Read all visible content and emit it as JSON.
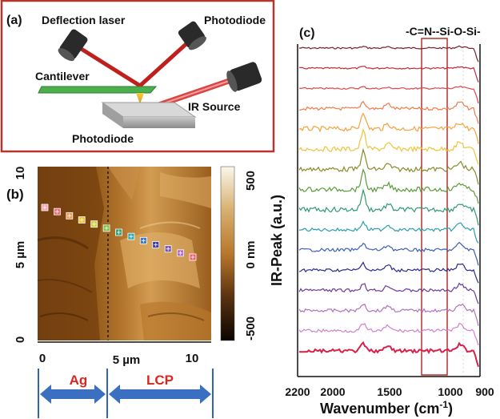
{
  "panel_a": {
    "label": "(a)",
    "deflection_laser": "Deflection laser",
    "photodiode_top": "Photodiode",
    "cantilever": "Cantilever",
    "ir_source": "IR Source",
    "photodiode_bottom": "Photodiode"
  },
  "panel_b": {
    "label": "(b)",
    "y_ticks": [
      "10",
      "5 µm",
      "0"
    ],
    "x_ticks": [
      "0",
      "5 µm",
      "10"
    ],
    "colorbar_ticks": [
      "500",
      "0 nm",
      "-500"
    ],
    "region_left": "Ag",
    "region_right": "LCP",
    "marker_colors": [
      "#f2a3b5",
      "#ee6d74",
      "#f39a56",
      "#f1c232",
      "#d1cf3d",
      "#7fbf3f",
      "#33a37a",
      "#2fa7b5",
      "#3a76c4",
      "#3b3fa6",
      "#7656b5",
      "#b26dc8",
      "#e86078"
    ]
  },
  "panel_c": {
    "label": "(c)",
    "annotation": "-C=N--Si-O-Si-",
    "y_label": "IR-Peak (a.u.)",
    "x_label_main": "Wavenumber (cm",
    "x_label_sup": "-1",
    "x_label_end": ")",
    "x_ticks": [
      "2200",
      "2000",
      "1500",
      "1000",
      "900"
    ],
    "trace_colors": [
      "#7a1e28",
      "#c4283a",
      "#e2454a",
      "#ef7a48",
      "#f4a23a",
      "#f0c33a",
      "#8a8a2a",
      "#5e9a3a",
      "#2f9a70",
      "#2aa0b0",
      "#3a5fb4",
      "#2a2a8a",
      "#6a3a9a",
      "#b070c0",
      "#d080d0",
      "#d8204a"
    ]
  }
}
